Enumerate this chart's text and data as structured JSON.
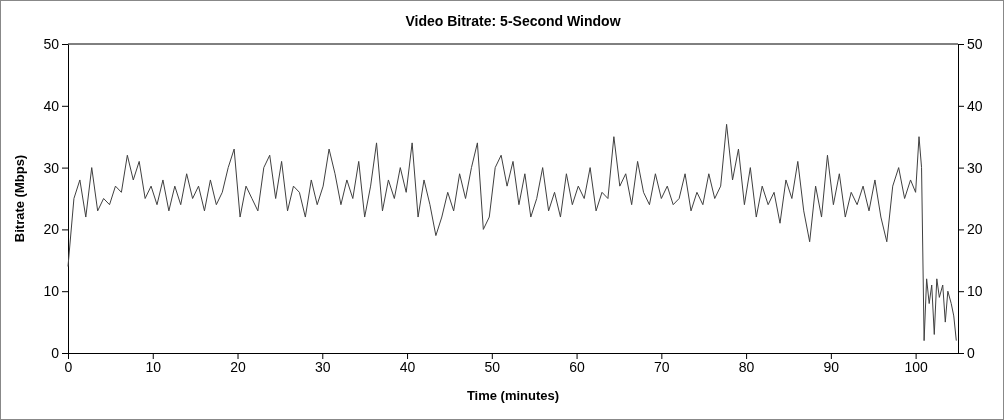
{
  "chart_data": {
    "type": "line",
    "title": "Video Bitrate: 5-Second Window",
    "xlabel": "Time (minutes)",
    "ylabel": "Bitrate (Mbps)",
    "xlim": [
      0,
      105
    ],
    "xticks": [
      0,
      10,
      20,
      30,
      40,
      50,
      60,
      70,
      80,
      90,
      100
    ],
    "ylim": [
      0,
      50
    ],
    "yticks": [
      0,
      10,
      20,
      30,
      40,
      50
    ],
    "y2lim": [
      0,
      50
    ],
    "y2ticks": [
      0,
      10,
      20,
      30,
      40,
      50
    ],
    "grid": false,
    "marker": "none",
    "line_style": "solid",
    "series": [
      {
        "color": "#404040",
        "x": [
          0,
          0.7,
          1.4,
          2.1,
          2.8,
          3.5,
          4.2,
          4.9,
          5.6,
          6.3,
          7,
          7.7,
          8.4,
          9.1,
          9.8,
          10.5,
          11.2,
          11.9,
          12.6,
          13.3,
          14,
          14.7,
          15.4,
          16.1,
          16.8,
          17.5,
          18.2,
          18.9,
          19.6,
          20.3,
          21,
          21.7,
          22.4,
          23.1,
          23.8,
          24.5,
          25.2,
          25.9,
          26.6,
          27.3,
          28,
          28.7,
          29.4,
          30.1,
          30.8,
          31.5,
          32.2,
          32.9,
          33.6,
          34.3,
          35,
          35.7,
          36.4,
          37.1,
          37.8,
          38.5,
          39.2,
          39.9,
          40.6,
          41.3,
          42,
          42.7,
          43.4,
          44.1,
          44.8,
          45.5,
          46.2,
          46.9,
          47.6,
          48.3,
          49,
          49.7,
          50.4,
          51.1,
          51.8,
          52.5,
          53.2,
          53.9,
          54.6,
          55.3,
          56,
          56.7,
          57.4,
          58.1,
          58.8,
          59.5,
          60.2,
          60.9,
          61.6,
          62.3,
          63,
          63.7,
          64.4,
          65.1,
          65.8,
          66.5,
          67.2,
          67.9,
          68.6,
          69.3,
          70,
          70.7,
          71.4,
          72.1,
          72.8,
          73.5,
          74.2,
          74.9,
          75.6,
          76.3,
          77,
          77.7,
          78.4,
          79.1,
          79.8,
          80.5,
          81.2,
          81.9,
          82.6,
          83.3,
          84,
          84.7,
          85.4,
          86.1,
          86.8,
          87.5,
          88.2,
          88.9,
          89.6,
          90.3,
          91,
          91.7,
          92.4,
          93.1,
          93.8,
          94.5,
          95.2,
          95.9,
          96.6,
          97.3,
          98,
          98.7,
          99.4,
          100,
          100.4,
          100.7,
          101,
          101.3,
          101.6,
          101.9,
          102.2,
          102.5,
          102.8,
          103.2,
          103.5,
          103.8,
          104.2,
          104.5,
          104.8
        ],
        "values": [
          14,
          25,
          28,
          22,
          30,
          23,
          25,
          24,
          27,
          26,
          32,
          28,
          31,
          25,
          27,
          24,
          28,
          23,
          27,
          24,
          29,
          25,
          27,
          23,
          28,
          24,
          26,
          30,
          33,
          22,
          27,
          25,
          23,
          30,
          32,
          25,
          31,
          23,
          27,
          26,
          22,
          28,
          24,
          27,
          33,
          29,
          24,
          28,
          25,
          31,
          22,
          27,
          34,
          23,
          28,
          25,
          30,
          26,
          34,
          22,
          28,
          24,
          19,
          22,
          26,
          23,
          29,
          25,
          30,
          34,
          20,
          22,
          30,
          32,
          27,
          31,
          24,
          29,
          22,
          25,
          30,
          23,
          26,
          22,
          29,
          24,
          27,
          25,
          30,
          23,
          26,
          25,
          35,
          27,
          29,
          24,
          31,
          26,
          24,
          29,
          25,
          27,
          24,
          25,
          29,
          23,
          26,
          24,
          29,
          25,
          27,
          37,
          28,
          33,
          24,
          30,
          22,
          27,
          24,
          26,
          21,
          28,
          25,
          31,
          23,
          18,
          27,
          22,
          32,
          24,
          29,
          22,
          26,
          24,
          27,
          23,
          28,
          22,
          18,
          27,
          30,
          25,
          28,
          26,
          35,
          30,
          2,
          12,
          8,
          11,
          3,
          12,
          9,
          11,
          5,
          10,
          8,
          6,
          2
        ]
      }
    ]
  }
}
